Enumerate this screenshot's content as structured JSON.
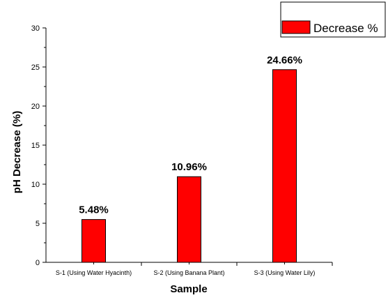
{
  "chart_data": {
    "type": "bar",
    "categories": [
      "S-1 (Using Water Hyacinth)",
      "S-2 (Using Banana Plant)",
      "S-3 (Using Water Lily)"
    ],
    "series": [
      {
        "name": "Decrease %",
        "values": [
          5.48,
          10.96,
          24.66
        ],
        "color": "#ff0000"
      }
    ],
    "data_labels": [
      "5.48%",
      "10.96%",
      "24.66%"
    ],
    "xlabel": "Sample",
    "ylabel": "pH Decrease (%)",
    "ylim": [
      0,
      30
    ],
    "yticks": [
      0,
      5,
      10,
      15,
      20,
      25,
      30
    ],
    "grid": false,
    "legend_position": "top-right"
  }
}
